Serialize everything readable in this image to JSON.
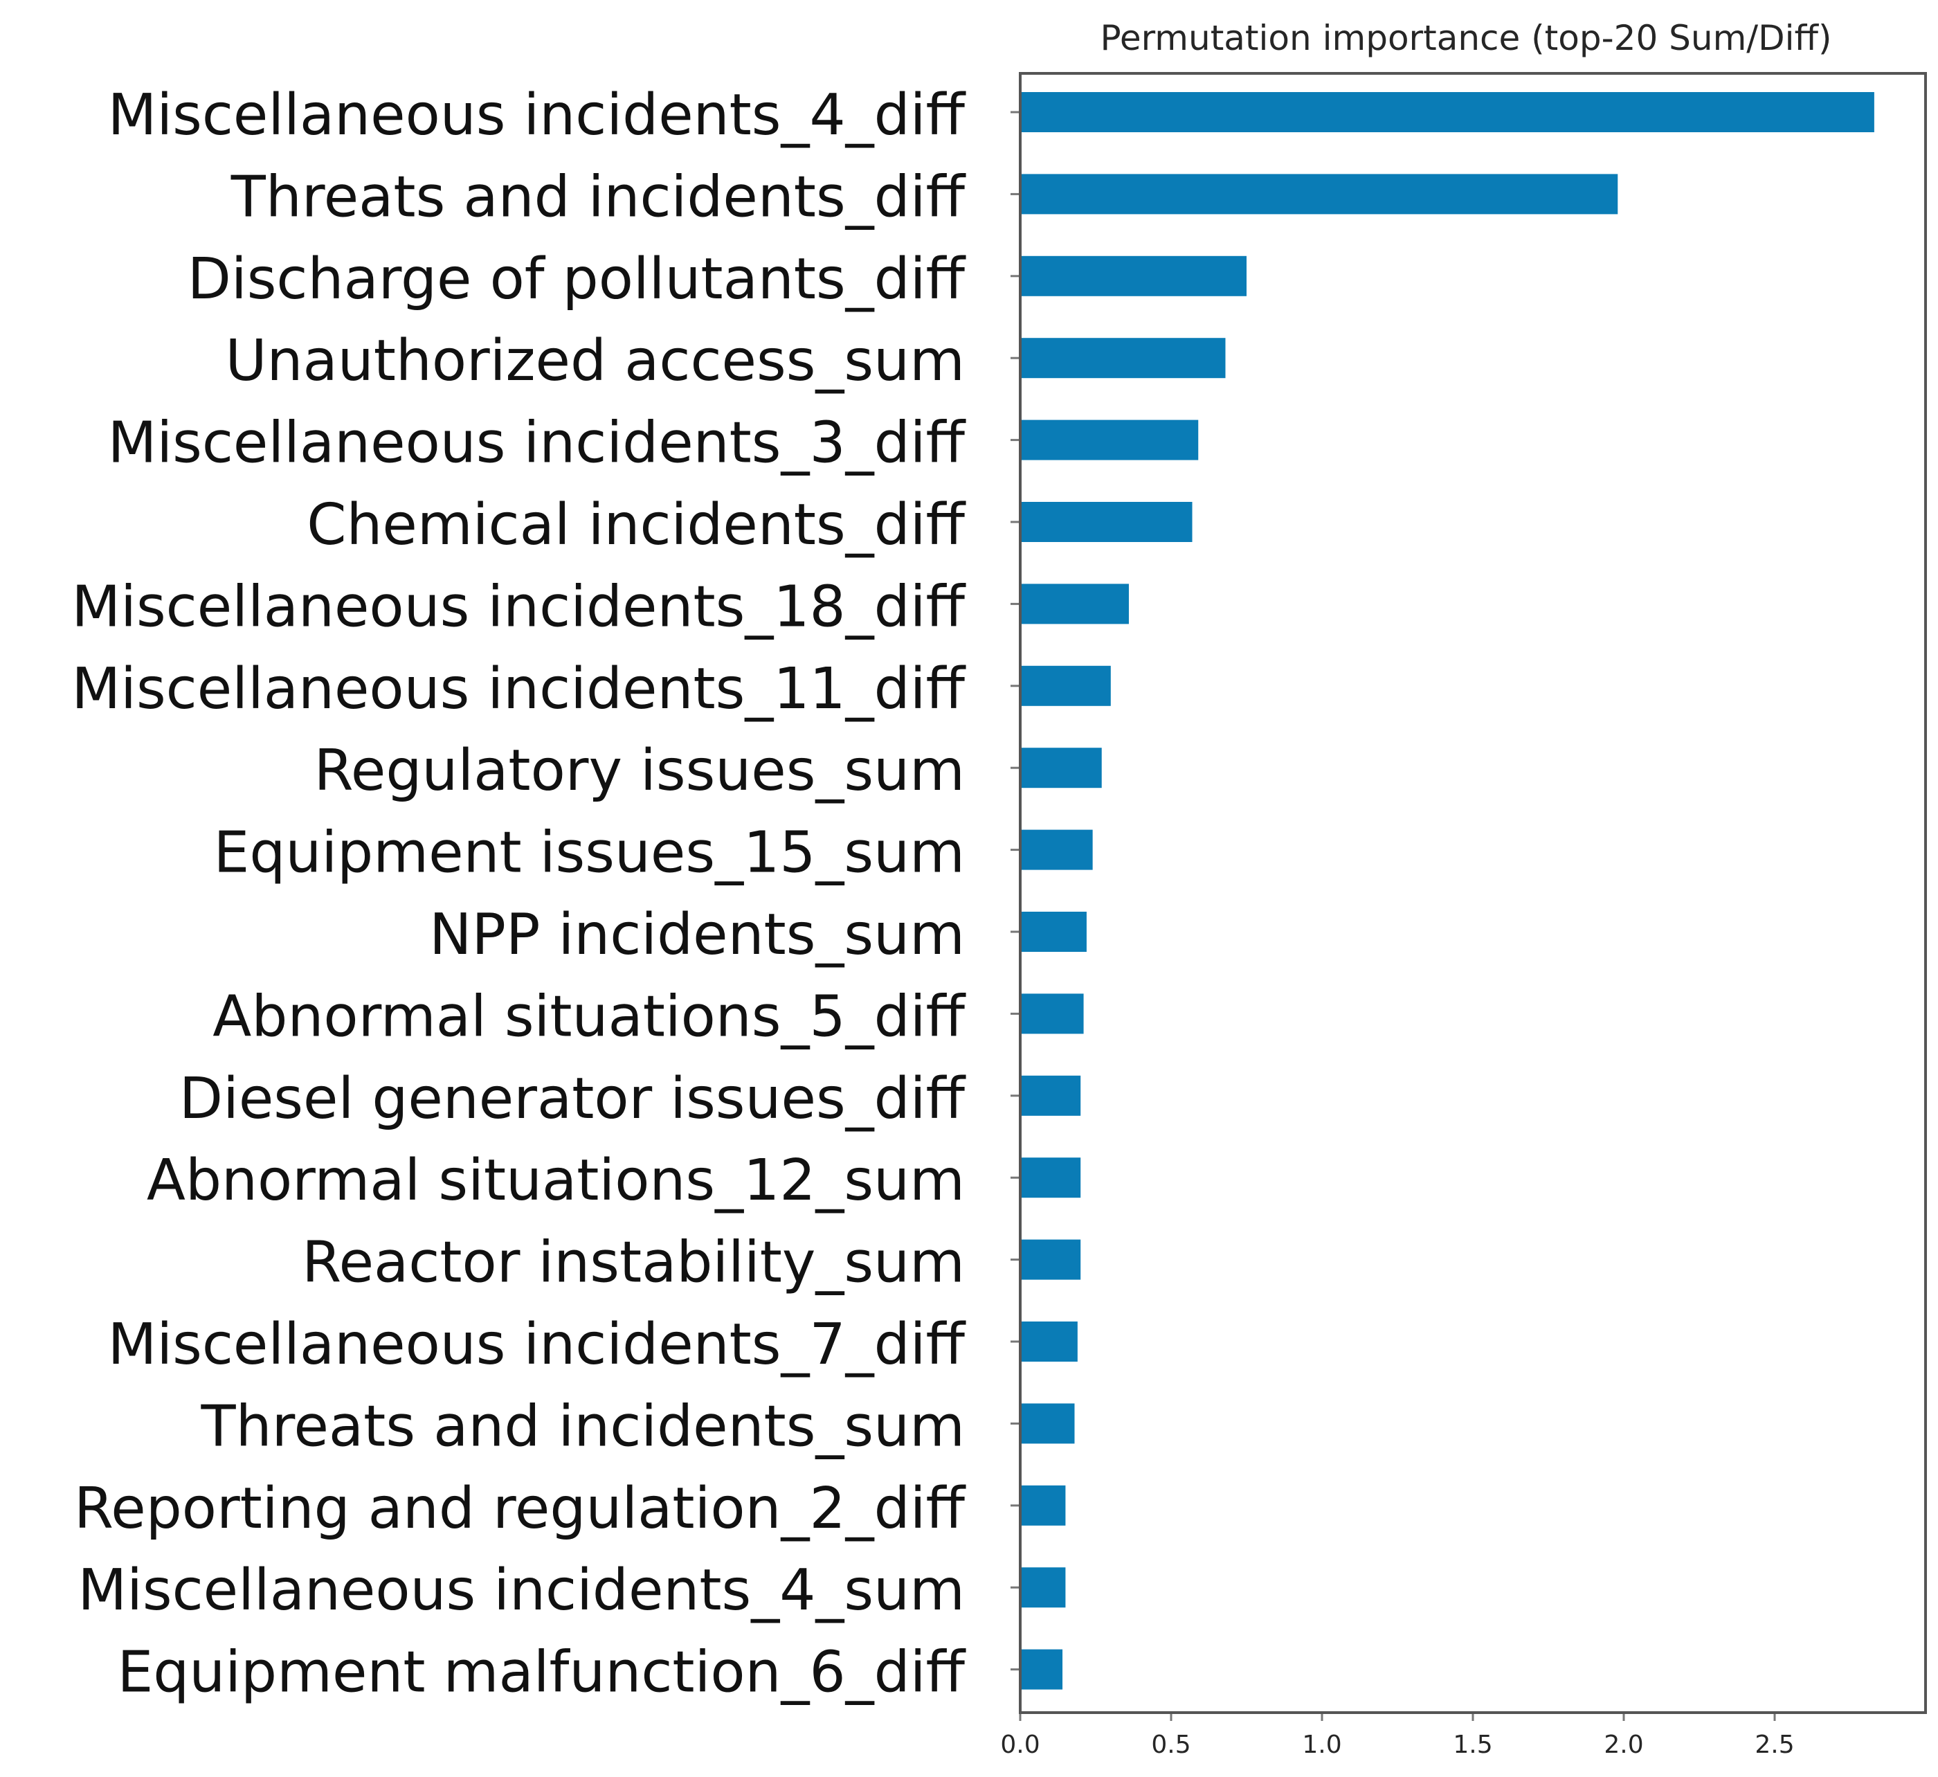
{
  "chart_data": {
    "type": "bar",
    "orientation": "horizontal",
    "title": "Permutation importance (top-20 Sum/Diff)",
    "xlabel": "",
    "ylabel": "",
    "categories": [
      "Miscellaneous incidents_4_diff",
      "Threats and incidents_diff",
      "Discharge of pollutants_diff",
      "Unauthorized access_sum",
      "Miscellaneous incidents_3_diff",
      "Chemical incidents_diff",
      "Miscellaneous incidents_18_diff",
      "Miscellaneous incidents_11_diff",
      "Regulatory issues_sum",
      "Equipment issues_15_sum",
      "NPP incidents_sum",
      "Abnormal situations_5_diff",
      "Diesel generator issues_diff",
      "Abnormal situations_12_sum",
      "Reactor instability_sum",
      "Miscellaneous incidents_7_diff",
      "Threats and incidents_sum",
      "Reporting and regulation_2_diff",
      "Miscellaneous incidents_4_sum",
      "Equipment malfunction_6_diff"
    ],
    "values": [
      2.83,
      1.98,
      0.75,
      0.68,
      0.59,
      0.57,
      0.36,
      0.3,
      0.27,
      0.24,
      0.22,
      0.21,
      0.2,
      0.2,
      0.2,
      0.19,
      0.18,
      0.15,
      0.15,
      0.14
    ],
    "xlim": [
      0,
      3.0
    ],
    "xticks": [
      "0.0",
      "0.5",
      "1.0",
      "1.5",
      "2.0",
      "2.5"
    ],
    "grid": false,
    "legend": "none",
    "bar_color": "#0a7cb6"
  }
}
